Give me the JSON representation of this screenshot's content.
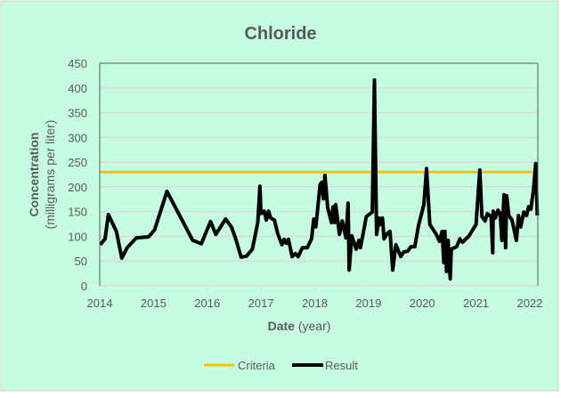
{
  "chart_data": {
    "type": "line",
    "title": "Chloride",
    "xlabel": "Date",
    "xlabel_unit": "(year)",
    "ylabel": "Concentration",
    "ylabel_unit": "(milligrams per liter)",
    "xlim": [
      2014,
      2022.15
    ],
    "ylim": [
      0,
      450
    ],
    "x_ticks": [
      2014,
      2015,
      2016,
      2017,
      2018,
      2019,
      2020,
      2021,
      2022
    ],
    "y_ticks": [
      0,
      50,
      100,
      150,
      200,
      250,
      300,
      350,
      400,
      450
    ],
    "grid": "horizontal",
    "legend": "bottom",
    "colors": {
      "background": "#c6fde0",
      "criteria": "#ffc000",
      "result": "#000000",
      "grid": "#d9d9d9",
      "text": "#595959"
    },
    "series": [
      {
        "name": "Criteria",
        "x": [
          2014,
          2022.15
        ],
        "y": [
          230,
          230
        ]
      },
      {
        "name": "Result",
        "x": [
          2014.01,
          2014.1,
          2014.16,
          2014.31,
          2014.41,
          2014.51,
          2014.68,
          2014.91,
          2015.02,
          2015.25,
          2015.73,
          2015.89,
          2016.06,
          2016.16,
          2016.34,
          2016.45,
          2016.53,
          2016.63,
          2016.73,
          2016.84,
          2016.94,
          2016.98,
          2017.0,
          2017.06,
          2017.1,
          2017.14,
          2017.18,
          2017.25,
          2017.31,
          2017.39,
          2017.43,
          2017.47,
          2017.51,
          2017.58,
          2017.64,
          2017.69,
          2017.77,
          2017.86,
          2017.94,
          2017.98,
          2018.02,
          2018.1,
          2018.13,
          2018.16,
          2018.19,
          2018.24,
          2018.31,
          2018.34,
          2018.37,
          2018.39,
          2018.46,
          2018.51,
          2018.58,
          2018.62,
          2018.64,
          2018.69,
          2018.77,
          2018.82,
          2018.85,
          2018.96,
          2019.07,
          2019.11,
          2019.15,
          2019.2,
          2019.22,
          2019.26,
          2019.29,
          2019.35,
          2019.4,
          2019.45,
          2019.51,
          2019.6,
          2019.65,
          2019.73,
          2019.79,
          2019.86,
          2019.93,
          2020.03,
          2020.08,
          2020.14,
          2020.26,
          2020.32,
          2020.37,
          2020.4,
          2020.42,
          2020.45,
          2020.48,
          2020.52,
          2020.54,
          2020.64,
          2020.7,
          2020.75,
          2020.87,
          2021.0,
          2021.07,
          2021.11,
          2021.17,
          2021.21,
          2021.28,
          2021.31,
          2021.32,
          2021.36,
          2021.41,
          2021.45,
          2021.48,
          2021.52,
          2021.55,
          2021.57,
          2021.61,
          2021.67,
          2021.75,
          2021.79,
          2021.83,
          2021.89,
          2021.94,
          2021.98,
          2022.02,
          2022.07,
          2022.11,
          2022.14
        ],
        "y": [
          83,
          95,
          144,
          110,
          56,
          77,
          97,
          99,
          113,
          191,
          92,
          85,
          130,
          104,
          135,
          119,
          95,
          58,
          60,
          74,
          128,
          201,
          146,
          151,
          133,
          151,
          137,
          133,
          106,
          83,
          94,
          86,
          94,
          59,
          65,
          59,
          77,
          77,
          95,
          135,
          119,
          205,
          209,
          176,
          223,
          158,
          128,
          160,
          128,
          164,
          104,
          131,
          97,
          167,
          32,
          101,
          74,
          92,
          77,
          140,
          149,
          416,
          104,
          137,
          124,
          137,
          95,
          106,
          110,
          32,
          83,
          59,
          68,
          70,
          79,
          79,
          122,
          164,
          237,
          124,
          104,
          90,
          110,
          47,
          110,
          29,
          92,
          14,
          74,
          79,
          95,
          88,
          101,
          124,
          234,
          140,
          131,
          146,
          140,
          67,
          151,
          137,
          153,
          146,
          92,
          184,
          77,
          182,
          142,
          133,
          92,
          142,
          119,
          149,
          142,
          160,
          155,
          196,
          247,
          142
        ]
      }
    ]
  }
}
